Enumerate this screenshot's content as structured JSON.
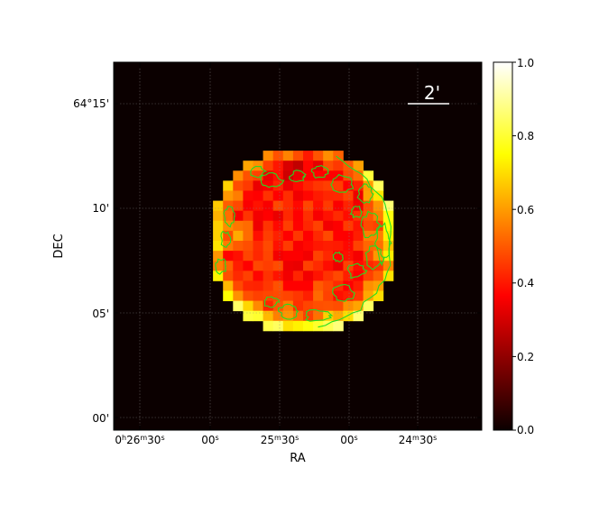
{
  "axes": {
    "xlabel": "RA",
    "ylabel": "DEC",
    "x_ticks": [
      {
        "main": "0",
        "sup1": "h",
        "mid": "26",
        "sup2": "m",
        "end": "30",
        "sup3": "s"
      },
      {
        "main": "00",
        "sup3": "s"
      },
      {
        "main": "25",
        "sup2": "m",
        "end": "30",
        "sup3": "s"
      },
      {
        "main": "00",
        "sup3": "s"
      },
      {
        "main": "24",
        "sup2": "m",
        "end": "30",
        "sup3": "s"
      }
    ],
    "y_ticks": [
      "64°15'",
      "10'",
      "05'",
      "00'"
    ],
    "grid": "dotted"
  },
  "scale_bar": {
    "label": "2'",
    "color": "#ffffff"
  },
  "colorbar": {
    "colormap": "hot",
    "range": [
      0.0,
      1.0
    ],
    "ticks": [
      "0.0",
      "0.2",
      "0.4",
      "0.6",
      "0.8",
      "1.0"
    ]
  },
  "image": {
    "background_color": "#0b0000",
    "contour_color": "#22dd22",
    "colors": [
      "#0b0000",
      "#ff0000",
      "#ffff00",
      "#ffffff"
    ]
  }
}
